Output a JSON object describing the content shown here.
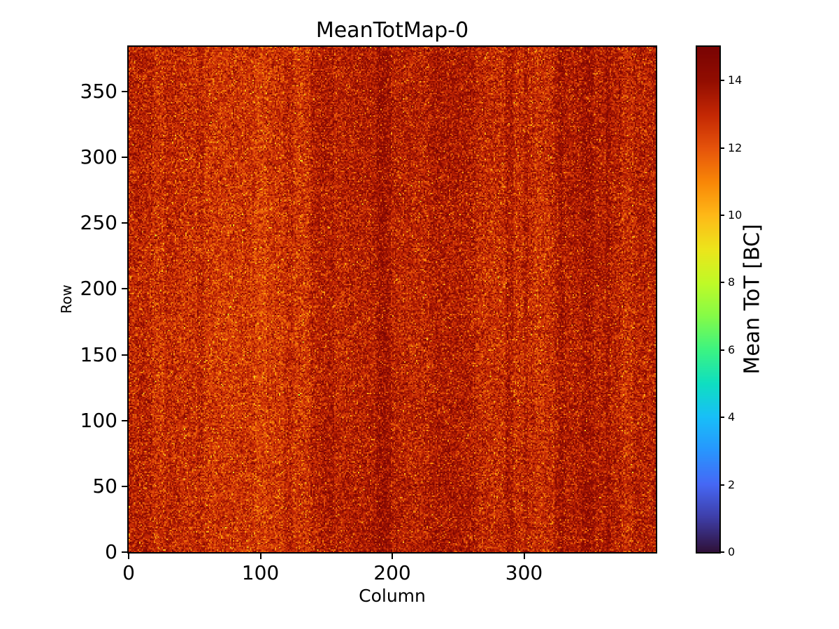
{
  "chart_data": {
    "type": "heatmap",
    "title": "MeanTotMap-0",
    "xlabel": "Column",
    "ylabel": "Row",
    "x_range": [
      0,
      400
    ],
    "y_range": [
      0,
      384
    ],
    "x_ticks": [
      0,
      100,
      200,
      300
    ],
    "y_ticks": [
      0,
      50,
      100,
      150,
      200,
      250,
      300,
      350
    ],
    "grid": false,
    "colorbar": {
      "label": "Mean ToT [BC]",
      "range": [
        0,
        15
      ],
      "ticks": [
        0,
        2,
        4,
        6,
        8,
        10,
        12,
        14
      ],
      "colormap": "turbo",
      "colormap_stops": [
        [
          0.0,
          48,
          18,
          59
        ],
        [
          0.067,
          62,
          62,
          168
        ],
        [
          0.133,
          70,
          104,
          245
        ],
        [
          0.2,
          40,
          150,
          254
        ],
        [
          0.267,
          24,
          191,
          248
        ],
        [
          0.333,
          15,
          223,
          193
        ],
        [
          0.4,
          60,
          244,
          130
        ],
        [
          0.467,
          133,
          251,
          72
        ],
        [
          0.533,
          192,
          250,
          39
        ],
        [
          0.6,
          237,
          229,
          27
        ],
        [
          0.667,
          254,
          185,
          24
        ],
        [
          0.733,
          249,
          135,
          7
        ],
        [
          0.8,
          230,
          84,
          11
        ],
        [
          0.867,
          196,
          40,
          4
        ],
        [
          0.933,
          147,
          14,
          1
        ],
        [
          1.0,
          122,
          4,
          3
        ]
      ]
    },
    "value_summary": {
      "description": "Per-pixel mean time-over-threshold map, 400 columns x 384 rows; values mostly 11-15 BC (orange to dark red) with yellow low-value speckle and vertical column-group banding.",
      "typical_mean": 13.1,
      "typical_spread": 0.8
    },
    "generator": {
      "seed": 20240613,
      "cols": 400,
      "rows": 384,
      "base": 13.1,
      "noise_sd": 0.8,
      "low_outlier_prob": 0.05,
      "low_outlier_delta": -1.8,
      "column_waves": [
        [
          0.035,
          1.2,
          0.25
        ],
        [
          0.013,
          4.0,
          0.2
        ],
        [
          0.08,
          0.3,
          0.1
        ]
      ],
      "row_waves": [
        [
          0.02,
          0.5,
          0.08
        ]
      ],
      "stripes": [
        {
          "from": 138,
          "to": 155,
          "delta": 0.45
        },
        {
          "from": 188,
          "to": 198,
          "delta": 0.5
        },
        {
          "from": 228,
          "to": 262,
          "delta": 0.3
        },
        {
          "from": 286,
          "to": 291,
          "delta": 0.6
        },
        {
          "from": 18,
          "to": 26,
          "delta": -0.35
        },
        {
          "from": 52,
          "to": 56,
          "delta": 0.4
        },
        {
          "from": 96,
          "to": 104,
          "delta": -0.3
        },
        {
          "from": 118,
          "to": 124,
          "delta": 0.4
        },
        {
          "from": 300,
          "to": 302,
          "delta": 0.5
        },
        {
          "from": 308,
          "to": 322,
          "delta": -0.3
        },
        {
          "from": 326,
          "to": 329,
          "delta": 0.4
        },
        {
          "from": 344,
          "to": 352,
          "delta": 0.35
        },
        {
          "from": 362,
          "to": 364,
          "delta": 0.45
        },
        {
          "from": 374,
          "to": 382,
          "delta": -0.35
        }
      ]
    }
  }
}
